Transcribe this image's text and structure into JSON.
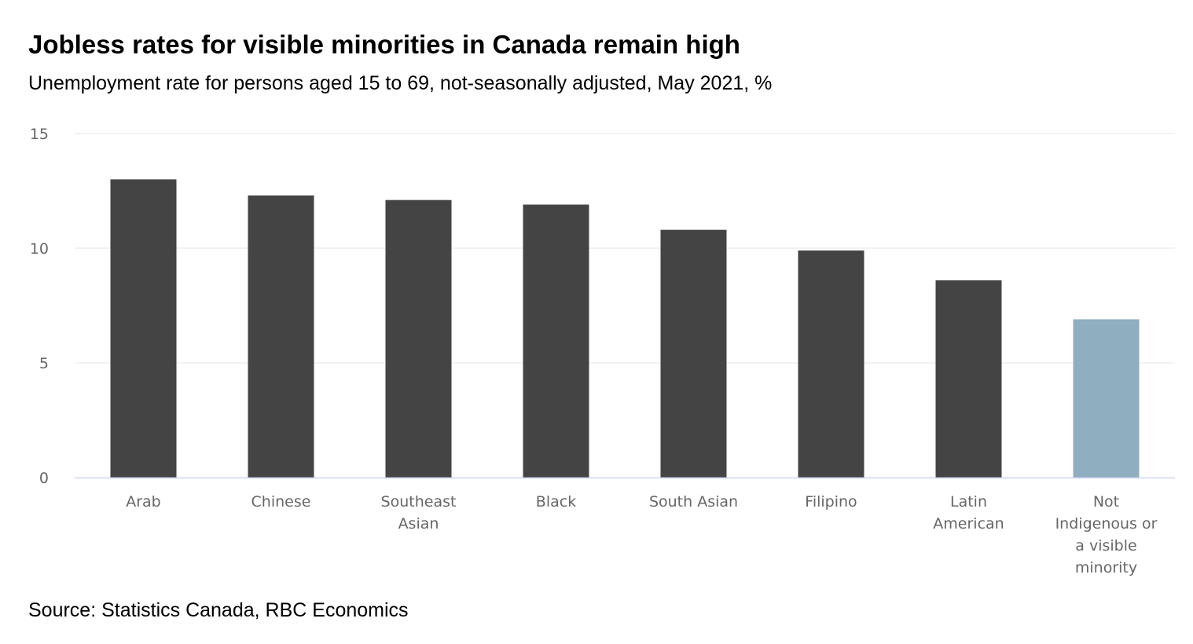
{
  "chart_data": {
    "type": "bar",
    "title": "Jobless rates for visible minorities in Canada remain high",
    "subtitle": "Unemployment rate for persons aged 15 to 69, not-seasonally adjusted, May 2021, %",
    "source": "Source: Statistics Canada, RBC Economics",
    "categories": [
      "Arab",
      "Chinese",
      "Southeast Asian",
      "Black",
      "South Asian",
      "Filipino",
      "Latin American",
      "Not Indigenous or a visible minority"
    ],
    "category_label_lines": [
      [
        "Arab"
      ],
      [
        "Chinese"
      ],
      [
        "Southeast",
        "Asian"
      ],
      [
        "Black"
      ],
      [
        "South Asian"
      ],
      [
        "Filipino"
      ],
      [
        "Latin",
        "American"
      ],
      [
        "Not",
        "Indigenous or",
        "a visible",
        "minority"
      ]
    ],
    "values": [
      13.0,
      12.3,
      12.1,
      11.9,
      10.8,
      9.9,
      8.6,
      6.9
    ],
    "bar_colors": [
      "#444444",
      "#444444",
      "#444444",
      "#444444",
      "#444444",
      "#444444",
      "#444444",
      "#8faec0"
    ],
    "ylim": [
      0,
      15
    ],
    "yticks": [
      0,
      5,
      10,
      15
    ],
    "grid": true,
    "xlabel": "",
    "ylabel": ""
  }
}
